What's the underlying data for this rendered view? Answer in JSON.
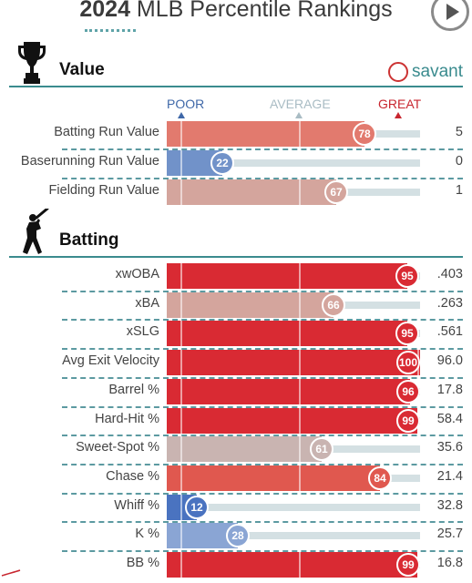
{
  "header": {
    "title_year": "2024",
    "title_rest": " MLB Percentile Rankings"
  },
  "value_section": {
    "title": "Value",
    "brand": "savant"
  },
  "batting_section": {
    "title": "Batting"
  },
  "scale": {
    "poor": "POOR",
    "average": "AVERAGE",
    "great": "GREAT"
  },
  "colors": {
    "accent": "#3a8b8e",
    "poor_text": "#3f68a8",
    "great_text": "#c8262f",
    "average_text": "#a9bcc4"
  },
  "value_rows": [
    {
      "label": "Batting Run Value",
      "percentile": 78,
      "value": "5",
      "color": "#e27a6e"
    },
    {
      "label": "Baserunning Run Value",
      "percentile": 22,
      "value": "0",
      "color": "#7192c9"
    },
    {
      "label": "Fielding Run Value",
      "percentile": 67,
      "value": "1",
      "color": "#d4a59d"
    }
  ],
  "batting_rows": [
    {
      "label": "xwOBA",
      "percentile": 95,
      "value": ".403",
      "color": "#d92a33"
    },
    {
      "label": "xBA",
      "percentile": 66,
      "value": ".263",
      "color": "#d4a59d"
    },
    {
      "label": "xSLG",
      "percentile": 95,
      "value": ".561",
      "color": "#d92a33"
    },
    {
      "label": "Avg Exit Velocity",
      "percentile": 100,
      "value": "96.0",
      "color": "#d92a33"
    },
    {
      "label": "Barrel %",
      "percentile": 96,
      "value": "17.8",
      "color": "#d92a33"
    },
    {
      "label": "Hard-Hit %",
      "percentile": 99,
      "value": "58.4",
      "color": "#d92a33"
    },
    {
      "label": "Sweet-Spot %",
      "percentile": 61,
      "value": "35.6",
      "color": "#c9b4b1"
    },
    {
      "label": "Chase %",
      "percentile": 84,
      "value": "21.4",
      "color": "#e0584f"
    },
    {
      "label": "Whiff %",
      "percentile": 12,
      "value": "32.8",
      "color": "#4a73c0"
    },
    {
      "label": "K %",
      "percentile": 28,
      "value": "25.7",
      "color": "#8aa5d4"
    },
    {
      "label": "BB %",
      "percentile": 99,
      "value": "16.8",
      "color": "#d92a33"
    }
  ]
}
